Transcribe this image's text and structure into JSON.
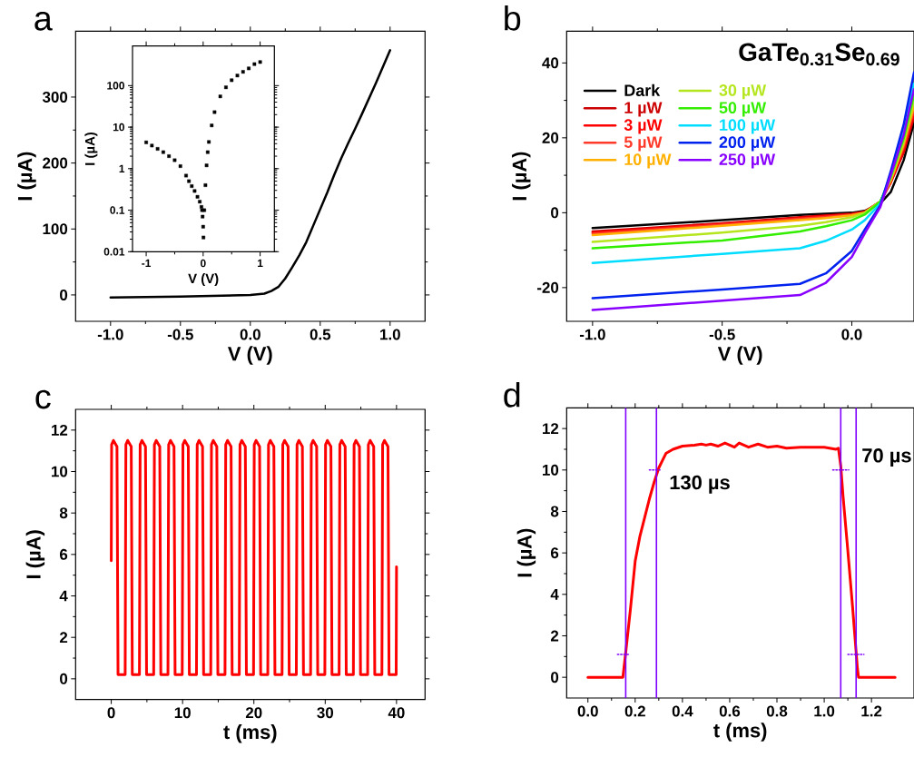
{
  "chart_data": [
    {
      "type": "line",
      "title": "a",
      "xlabel": "V (V)",
      "ylabel": "I (µA)",
      "xlim": [
        -1.25,
        1.25
      ],
      "ylim": [
        -40,
        400
      ],
      "xticks": [
        {
          "value": -1,
          "label": "-1.0"
        },
        {
          "value": -0.5,
          "label": "-0.5"
        },
        {
          "value": 0,
          "label": "0.0"
        },
        {
          "value": 0.5,
          "label": "0.5"
        },
        {
          "value": 1,
          "label": "1.0"
        }
      ],
      "yticks": [
        0,
        100,
        200,
        300
      ],
      "x": [
        -1,
        -0.5,
        0,
        0.1,
        0.15,
        0.2,
        0.25,
        0.3,
        0.35,
        0.4,
        0.45,
        0.5,
        0.55,
        0.6,
        0.65,
        0.7,
        0.75,
        0.8,
        0.9,
        1.0
      ],
      "series": [
        {
          "color": "#000000",
          "values": [
            -4,
            -2.5,
            0,
            2,
            6,
            12,
            25,
            42,
            60,
            80,
            105,
            130,
            155,
            182,
            207,
            230,
            252,
            275,
            322,
            371
          ]
        }
      ]
    },
    {
      "type": "scatter",
      "marker": "square",
      "log": "y",
      "xlabel": "V (V)",
      "ylabel": "I (µA)",
      "xlim": [
        -1.24,
        1.25
      ],
      "ylim": [
        0.01,
        900
      ],
      "xticks": [
        -1,
        0,
        1
      ],
      "yticks": [
        0.01,
        0.1,
        1,
        10,
        100
      ],
      "x": [
        -1,
        -0.9,
        -0.8,
        -0.7,
        -0.6,
        -0.5,
        -0.4,
        -0.3,
        -0.25,
        -0.2,
        -0.15,
        -0.1,
        -0.06,
        -0.03,
        -0.02,
        -0.01,
        0,
        0.005,
        0.02,
        0.04,
        0.06,
        0.08,
        0.1,
        0.15,
        0.2,
        0.3,
        0.4,
        0.5,
        0.6,
        0.7,
        0.8,
        0.9,
        1.0
      ],
      "series": [
        {
          "color": "#000000",
          "values": [
            4.3,
            3.6,
            3.0,
            2.5,
            2.0,
            1.6,
            1.15,
            0.68,
            0.5,
            0.38,
            0.29,
            0.21,
            0.16,
            0.12,
            0.1,
            0.07,
            0.04,
            0.022,
            0.1,
            0.4,
            1.2,
            2.5,
            4.4,
            11,
            23,
            55,
            91,
            135,
            175,
            215,
            260,
            330,
            370
          ]
        }
      ]
    },
    {
      "type": "line",
      "title": "b",
      "xlabel": "V (V)",
      "ylabel": "I (µA)",
      "xlim": [
        -1.1,
        0.24
      ],
      "ylim": [
        -29,
        48.5
      ],
      "xticks": [
        {
          "value": -1,
          "label": "-1.0"
        },
        {
          "value": -0.5,
          "label": "-0.5"
        },
        {
          "value": 0,
          "label": "0.0"
        }
      ],
      "yticks": [
        -20,
        0,
        20,
        40
      ],
      "legend": "top left",
      "annotations": [
        "GaTe$_{0.31}$Se$_{0.69}$"
      ],
      "x": [
        -1,
        -0.5,
        -0.2,
        -0.1,
        0,
        0.05,
        0.11,
        0.15,
        0.2,
        0.24
      ],
      "series": [
        {
          "name": "Dark",
          "color": "#000000",
          "values": [
            -4.1,
            -2.0,
            -0.6,
            -0.3,
            0,
            0.5,
            2.5,
            5.5,
            14,
            24
          ]
        },
        {
          "name": "1 µW",
          "color": "#cc0000",
          "values": [
            -5.0,
            -2.8,
            -1.2,
            -0.7,
            -0.3,
            0.3,
            3,
            8,
            16,
            25.5
          ]
        },
        {
          "name": "3 µW",
          "color": "#ff0000",
          "values": [
            -5.3,
            -3.0,
            -1.4,
            -0.9,
            -0.4,
            0.2,
            3,
            8,
            16.8,
            26.5
          ]
        },
        {
          "name": "5 µW",
          "color": "#ff3a2a",
          "values": [
            -5.6,
            -3.2,
            -1.6,
            -1.1,
            -0.5,
            0.1,
            3,
            8.5,
            17.5,
            27.5
          ]
        },
        {
          "name": "10 µW",
          "color": "#ffb000",
          "values": [
            -6.0,
            -3.5,
            -2.0,
            -1.4,
            -0.7,
            0,
            3,
            8.5,
            18.2,
            28.5
          ]
        },
        {
          "name": "30 µW",
          "color": "#b5e61d",
          "values": [
            -7.8,
            -5.3,
            -3.5,
            -2.5,
            -1.2,
            0,
            3,
            9,
            19,
            30
          ]
        },
        {
          "name": "50 µW",
          "color": "#33ee00",
          "values": [
            -9.5,
            -7.4,
            -5,
            -3.6,
            -2,
            -0.5,
            3,
            9.5,
            19.8,
            31.5
          ]
        },
        {
          "name": "100 µW",
          "color": "#00ddff",
          "values": [
            -13.4,
            -11,
            -9.5,
            -7.5,
            -4.5,
            -2,
            2.5,
            10,
            22,
            34.5
          ]
        },
        {
          "name": "200 µW",
          "color": "#0022ee",
          "values": [
            -22.8,
            -20.5,
            -19,
            -16.2,
            -10.2,
            -4.5,
            2,
            11,
            23.5,
            37.5
          ]
        },
        {
          "name": "250 µW",
          "color": "#8800ff",
          "values": [
            -26,
            -23.5,
            -22,
            -18.7,
            -11.8,
            -5.5,
            1.5,
            10,
            20.8,
            33
          ]
        }
      ]
    },
    {
      "type": "line",
      "title": "c",
      "xlabel": "t (ms)",
      "ylabel": "I (µA)",
      "xlim": [
        -5,
        44
      ],
      "ylim": [
        -1,
        13
      ],
      "xticks": [
        0,
        10,
        20,
        30,
        40
      ],
      "yticks": [
        0,
        2,
        4,
        6,
        8,
        10,
        12
      ],
      "x": [
        0,
        0.05,
        0.3,
        0.8,
        0.95,
        1.95,
        2.05,
        2.3,
        2.8,
        2.95,
        3.95,
        4.05,
        4.3,
        4.8,
        4.95,
        5.95,
        6.05,
        6.3,
        6.8,
        6.95,
        7.95,
        8.05,
        8.3,
        8.8,
        8.95,
        9.95,
        10.05,
        10.3,
        10.8,
        10.95,
        11.95,
        12.05,
        12.3,
        12.8,
        12.95,
        13.95,
        14.05,
        14.3,
        14.8,
        14.95,
        15.95,
        16.05,
        16.3,
        16.8,
        16.95,
        17.95,
        18.05,
        18.3,
        18.8,
        18.95,
        19.95,
        20.05,
        20.3,
        20.8,
        20.95,
        21.95,
        22.05,
        22.3,
        22.8,
        22.95,
        23.95,
        24.05,
        24.3,
        24.8,
        24.95,
        25.95,
        26.05,
        26.3,
        26.8,
        26.95,
        27.95,
        28.05,
        28.3,
        28.8,
        28.95,
        29.95,
        30.05,
        30.3,
        30.8,
        30.95,
        31.95,
        32.05,
        32.3,
        32.8,
        32.95,
        33.95,
        34.05,
        34.3,
        34.8,
        34.95,
        35.95,
        36.05,
        36.3,
        36.8,
        36.95,
        37.95,
        38.05,
        38.3,
        38.8,
        38.95,
        39.95,
        40.0
      ],
      "series": [
        {
          "color": "#ff0000",
          "values": [
            5.7,
            11.3,
            11.5,
            11.2,
            0.2,
            0.2,
            11.3,
            11.5,
            11.2,
            0.2,
            0.2,
            11.3,
            11.5,
            11.2,
            0.2,
            0.2,
            11.3,
            11.5,
            11.2,
            0.2,
            0.2,
            11.3,
            11.5,
            11.2,
            0.2,
            0.2,
            11.3,
            11.5,
            11.2,
            0.2,
            0.2,
            11.3,
            11.5,
            11.2,
            0.2,
            0.2,
            11.3,
            11.5,
            11.2,
            0.2,
            0.2,
            11.3,
            11.5,
            11.2,
            0.2,
            0.2,
            11.3,
            11.5,
            11.2,
            0.2,
            0.2,
            11.3,
            11.5,
            11.2,
            0.2,
            0.2,
            11.3,
            11.5,
            11.2,
            0.2,
            0.2,
            11.3,
            11.5,
            11.2,
            0.2,
            0.2,
            11.3,
            11.5,
            11.2,
            0.2,
            0.2,
            11.3,
            11.5,
            11.2,
            0.2,
            0.2,
            11.3,
            11.5,
            11.2,
            0.2,
            0.2,
            11.3,
            11.5,
            11.2,
            0.2,
            0.2,
            11.3,
            11.5,
            11.2,
            0.2,
            0.2,
            11.3,
            11.5,
            11.2,
            0.2,
            0.2,
            11.3,
            11.5,
            11.2,
            0.2,
            0.2,
            5.4
          ]
        }
      ]
    },
    {
      "type": "line",
      "title": "d",
      "xlabel": "t (ms)",
      "ylabel": "I (µA)",
      "xlim": [
        -0.09,
        1.38
      ],
      "ylim": [
        -1,
        13
      ],
      "xticks": [
        {
          "value": 0,
          "label": "0.0"
        },
        {
          "value": 0.2,
          "label": "0.2"
        },
        {
          "value": 0.4,
          "label": "0.4"
        },
        {
          "value": 0.6,
          "label": "0.6"
        },
        {
          "value": 0.8,
          "label": "0.8"
        },
        {
          "value": 1,
          "label": "1.0"
        },
        {
          "value": 1.2,
          "label": "1.2"
        }
      ],
      "yticks": [
        0,
        2,
        4,
        6,
        8,
        10,
        12
      ],
      "annotations": [
        "130 µs",
        "70 µs"
      ],
      "ref_lines": [
        {
          "axis": "x",
          "value": 0.16,
          "color": "#8000ff"
        },
        {
          "axis": "x",
          "value": 0.29,
          "color": "#8000ff"
        },
        {
          "axis": "x",
          "value": 1.07,
          "color": "#8000ff"
        },
        {
          "axis": "x",
          "value": 1.135,
          "color": "#8000ff"
        }
      ],
      "x": [
        0,
        0.05,
        0.1,
        0.148,
        0.16,
        0.18,
        0.2,
        0.22,
        0.24,
        0.26,
        0.28,
        0.3,
        0.33,
        0.36,
        0.4,
        0.45,
        0.48,
        0.5,
        0.52,
        0.55,
        0.58,
        0.62,
        0.64,
        0.68,
        0.72,
        0.76,
        0.8,
        0.84,
        0.9,
        0.95,
        1.0,
        1.05,
        1.06,
        1.07,
        1.08,
        1.1,
        1.12,
        1.14,
        1.145,
        1.2,
        1.3
      ],
      "series": [
        {
          "color": "#ff0000",
          "values": [
            0,
            0,
            0,
            0,
            1.2,
            3.3,
            5.6,
            6.8,
            7.7,
            8.6,
            9.4,
            10.1,
            10.8,
            11.0,
            11.15,
            11.2,
            11.25,
            11.2,
            11.25,
            11.15,
            11.3,
            11.1,
            11.3,
            11.1,
            11.25,
            11.1,
            11.15,
            11.05,
            11.1,
            11.1,
            11.1,
            11.0,
            11.05,
            10.2,
            8.7,
            6.1,
            3.4,
            0.5,
            0,
            0,
            0
          ]
        },
        {
          "color": "#8000ff",
          "line_style": "dotted",
          "x": [
            0.26,
            0.305
          ],
          "values": [
            10,
            10
          ]
        },
        {
          "color": "#8000ff",
          "line_style": "dotted",
          "x": [
            1.036,
            1.104
          ],
          "values": [
            10,
            10
          ]
        },
        {
          "color": "#8000ff",
          "line_style": "dotted",
          "x": [
            0.125,
            0.173
          ],
          "values": [
            1.1,
            1.1
          ]
        },
        {
          "color": "#8000ff",
          "line_style": "dotted",
          "x": [
            1.1,
            1.168
          ],
          "values": [
            1.1,
            1.1
          ]
        }
      ]
    }
  ]
}
